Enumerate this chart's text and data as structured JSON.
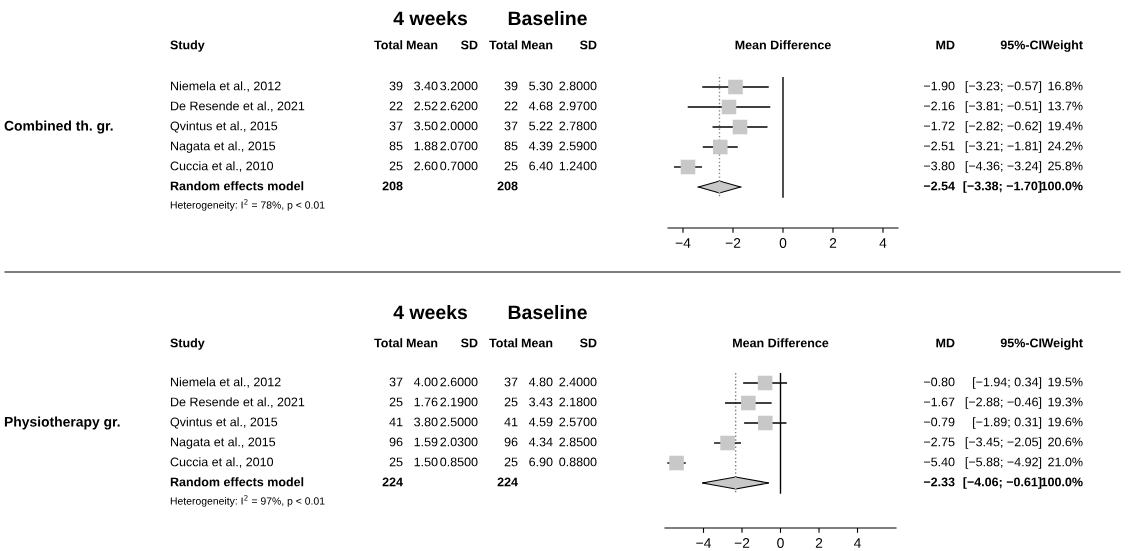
{
  "chart_data": [
    {
      "type": "scatter",
      "orientation": "horizontal",
      "ylabel": "Combined th. gr.",
      "categories": [
        "Niemela et al., 2012",
        "De Resende et al., 2021",
        "Qvintus et al., 2015",
        "Nagata et al., 2015",
        "Cuccia et al., 2010",
        "Random effects model"
      ],
      "series": [
        {
          "marker": "square",
          "color": "#c8c8c8",
          "values": [
            -1.9,
            -2.16,
            -1.72,
            -2.51,
            -3.8,
            null
          ],
          "errors": [
            [
              -3.23,
              -0.57
            ],
            [
              -3.81,
              -0.51
            ],
            [
              -2.82,
              -0.62
            ],
            [
              -3.21,
              -1.81
            ],
            [
              -4.36,
              -3.24
            ],
            null
          ]
        },
        {
          "marker": "diamond",
          "color": "#c8c8c8",
          "values": [
            null,
            null,
            null,
            null,
            null,
            -2.54
          ],
          "errors": [
            null,
            null,
            null,
            null,
            null,
            [
              -3.38,
              -1.7
            ]
          ]
        }
      ],
      "xlim": [
        -4.6,
        4.6
      ],
      "xticks": [
        -4,
        -2,
        0,
        2,
        4
      ],
      "tick_labels": "x",
      "ref_lines": [
        {
          "axis": "x",
          "value": 0,
          "color": "#000000",
          "line_style": "solid"
        },
        {
          "axis": "x",
          "value": -2.54,
          "color": "#808080",
          "line_style": "dotted"
        }
      ],
      "annotations": [
        "4 weeks",
        "Baseline",
        "Study",
        "Total",
        "Mean",
        "SD",
        "Total",
        "Mean",
        "SD",
        "Mean Difference",
        "MD",
        "95%-CI",
        "Weight",
        "39",
        "3.40",
        "3.2000",
        "39",
        "5.30",
        "2.8000",
        "−1.90",
        "[−3.23; −0.57]",
        "16.8%",
        "22",
        "2.52",
        "2.6200",
        "22",
        "4.68",
        "2.9700",
        "−2.16",
        "[−3.81; −0.51]",
        "13.7%",
        "37",
        "3.50",
        "2.0000",
        "37",
        "5.22",
        "2.7800",
        "−1.72",
        "[−2.82; −0.62]",
        "19.4%",
        "85",
        "1.88",
        "2.0700",
        "85",
        "4.39",
        "2.5900",
        "−2.51",
        "[−3.21; −1.81]",
        "24.2%",
        "25",
        "2.60",
        "0.7000",
        "25",
        "6.40",
        "1.2400",
        "−3.80",
        "[−4.36; −3.24]",
        "25.8%",
        "208",
        "208",
        "−2.54",
        "[−3.38; −1.70]",
        "100.0%",
        "Heterogeneity: I$^{2}$ = 78%, p < 0.01"
      ]
    },
    {
      "type": "scatter",
      "orientation": "horizontal",
      "ylabel": "Physiotherapy gr.",
      "categories": [
        "Niemela et al., 2012",
        "De Resende et al., 2021",
        "Qvintus et al., 2015",
        "Nagata et al., 2015",
        "Cuccia et al., 2010",
        "Random effects model"
      ],
      "series": [
        {
          "marker": "square",
          "color": "#c8c8c8",
          "values": [
            -0.8,
            -1.67,
            -0.79,
            -2.75,
            -5.4,
            null
          ],
          "errors": [
            [
              -1.94,
              0.34
            ],
            [
              -2.88,
              -0.46
            ],
            [
              -1.89,
              0.31
            ],
            [
              -3.45,
              -2.05
            ],
            [
              -5.88,
              -4.92
            ],
            null
          ]
        },
        {
          "marker": "diamond",
          "color": "#c8c8c8",
          "values": [
            null,
            null,
            null,
            null,
            null,
            -2.33
          ],
          "errors": [
            null,
            null,
            null,
            null,
            null,
            [
              -4.06,
              -0.61
            ]
          ]
        }
      ],
      "xlim": [
        -6,
        6
      ],
      "xticks": [
        -4,
        -2,
        0,
        2,
        4
      ],
      "tick_labels": "x",
      "ref_lines": [
        {
          "axis": "x",
          "value": 0,
          "color": "#000000",
          "line_style": "solid"
        },
        {
          "axis": "x",
          "value": -2.33,
          "color": "#808080",
          "line_style": "dotted"
        }
      ],
      "annotations": [
        "4 weeks",
        "Baseline",
        "Study",
        "Total",
        "Mean",
        "SD",
        "Total",
        "Mean",
        "SD",
        "Mean Difference",
        "MD",
        "95%-CI",
        "Weight",
        "37",
        "4.00",
        "2.6000",
        "37",
        "4.80",
        "2.4000",
        "−0.80",
        "[−1.94; 0.34]",
        "19.5%",
        "25",
        "1.76",
        "2.1900",
        "25",
        "3.43",
        "2.1800",
        "−1.67",
        "[−2.88; −0.46]",
        "19.3%",
        "41",
        "3.80",
        "2.5000",
        "41",
        "4.59",
        "2.5700",
        "−0.79",
        "[−1.89; 0.31]",
        "19.6%",
        "96",
        "1.59",
        "2.0300",
        "96",
        "4.34",
        "2.8500",
        "−2.75",
        "[−3.45; −2.05]",
        "20.6%",
        "25",
        "1.50",
        "0.8500",
        "25",
        "6.90",
        "0.8800",
        "−5.40",
        "[−5.88; −4.92]",
        "21.0%",
        "224",
        "224",
        "−2.33",
        "[−4.06; −0.61]",
        "100.0%",
        "Heterogeneity: I$^{2}$ = 97%, p < 0.01"
      ]
    }
  ]
}
